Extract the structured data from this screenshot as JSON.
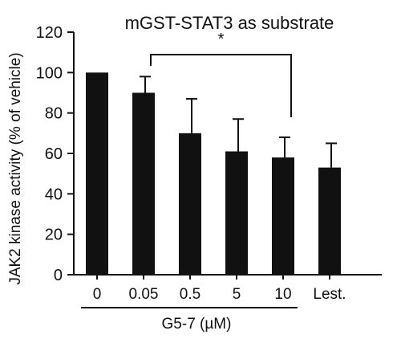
{
  "chart_data": {
    "type": "bar",
    "title": "mGST-STAT3 as substrate",
    "ylabel": "JAK2 kinase activity (% of vehicle)",
    "xlabel": "",
    "ylim": [
      0,
      120
    ],
    "yticks": [
      "0",
      "20",
      "40",
      "60",
      "80",
      "100",
      "120"
    ],
    "categories": [
      "0",
      "0.05",
      "0.5",
      "5",
      "10",
      "Lest."
    ],
    "values": [
      100,
      90,
      70,
      61,
      58,
      53
    ],
    "errors_upper": [
      0,
      8,
      17,
      16,
      10,
      12
    ],
    "group_label": "G5-7 (µM)",
    "significance": {
      "label": "*",
      "from_category": "0.05",
      "to_category": "10"
    },
    "bar_color": "#111111",
    "legend": "none",
    "grid": false
  }
}
